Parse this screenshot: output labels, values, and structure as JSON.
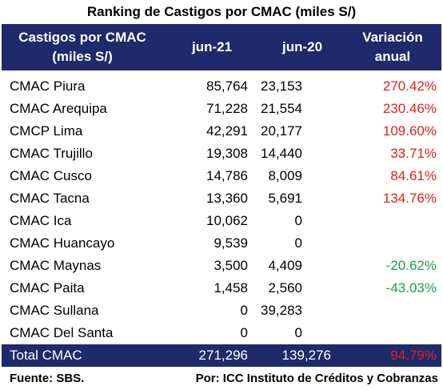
{
  "title": "Ranking de Castigos por CMAC (miles S/)",
  "header": {
    "col0": [
      "Castigos por CMAC",
      "(miles S/)"
    ],
    "col1": "jun-21",
    "col2": "jun-20",
    "col3": [
      "Variación",
      "anual"
    ]
  },
  "rows": [
    {
      "name": "CMAC Piura",
      "jun21": "85,764",
      "jun20": "23,153",
      "var": "270.42%",
      "sign": "pos"
    },
    {
      "name": "CMAC Arequipa",
      "jun21": "71,228",
      "jun20": "21,554",
      "var": "230.46%",
      "sign": "pos"
    },
    {
      "name": "CMCP Lima",
      "jun21": "42,291",
      "jun20": "20,177",
      "var": "109.60%",
      "sign": "pos"
    },
    {
      "name": "CMAC Trujillo",
      "jun21": "19,308",
      "jun20": "14,440",
      "var": "33.71%",
      "sign": "pos"
    },
    {
      "name": "CMAC Cusco",
      "jun21": "14,786",
      "jun20": "8,009",
      "var": "84.61%",
      "sign": "pos"
    },
    {
      "name": "CMAC Tacna",
      "jun21": "13,360",
      "jun20": "5,691",
      "var": "134.76%",
      "sign": "pos"
    },
    {
      "name": "CMAC Ica",
      "jun21": "10,062",
      "jun20": "0",
      "var": "",
      "sign": ""
    },
    {
      "name": "CMAC Huancayo",
      "jun21": "9,539",
      "jun20": "0",
      "var": "",
      "sign": ""
    },
    {
      "name": "CMAC Maynas",
      "jun21": "3,500",
      "jun20": "4,409",
      "var": "-20.62%",
      "sign": "neg"
    },
    {
      "name": "CMAC Paita",
      "jun21": "1,458",
      "jun20": "2,560",
      "var": "-43.03%",
      "sign": "neg"
    },
    {
      "name": "CMAC Sullana",
      "jun21": "0",
      "jun20": "39,283",
      "var": "",
      "sign": ""
    },
    {
      "name": "CMAC Del Santa",
      "jun21": "0",
      "jun20": "0",
      "var": "",
      "sign": ""
    }
  ],
  "total": {
    "name": "Total CMAC",
    "jun21": "271,296",
    "jun20": "139,276",
    "var": "94.79%"
  },
  "footer": {
    "source": "Fuente: SBS.",
    "credit": "Por: ICC Instituto de Créditos y Cobranzas"
  },
  "colors": {
    "header_bg": "#1f2a6b",
    "positive": "#e0201c",
    "negative": "#1a9e4b"
  }
}
